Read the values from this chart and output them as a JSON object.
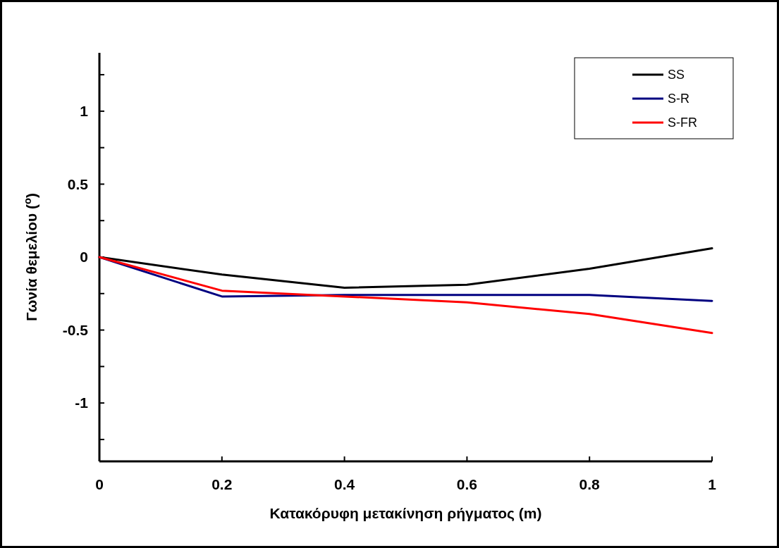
{
  "chart_data": {
    "type": "line",
    "xlabel": "Κατακόρυφη μετακίνηση ρήγματος (m)",
    "ylabel": "Γωνία  θεμελίου ($^{o}$)",
    "x": [
      0,
      0.2,
      0.4,
      0.6,
      0.8,
      1
    ],
    "series": [
      {
        "name": "SS",
        "color": "#000000",
        "values": [
          0,
          -0.12,
          -0.21,
          -0.19,
          -0.08,
          0.06
        ]
      },
      {
        "name": "S-R",
        "color": "#000080",
        "values": [
          0,
          -0.27,
          -0.26,
          -0.26,
          -0.26,
          -0.3
        ]
      },
      {
        "name": "S-FR",
        "color": "#ff0000",
        "values": [
          0,
          -0.23,
          -0.27,
          -0.31,
          -0.39,
          -0.52
        ]
      }
    ],
    "xlim": [
      0,
      1
    ],
    "xticks": [
      0,
      0.2,
      0.4,
      0.6,
      0.8,
      1
    ],
    "ylim": [
      -1.4,
      1.4
    ],
    "yticks": [
      {
        "value": -1.25,
        "label": null
      },
      -1,
      {
        "value": -0.75,
        "label": null
      },
      -0.5,
      {
        "value": -0.25,
        "label": null
      },
      0,
      {
        "value": 0.25,
        "label": null
      },
      0.5,
      {
        "value": 0.75,
        "label": null
      },
      1,
      {
        "value": 1.25,
        "label": null
      }
    ],
    "grid": false,
    "legend": "top right",
    "marker": "none",
    "line_style": "solid"
  }
}
